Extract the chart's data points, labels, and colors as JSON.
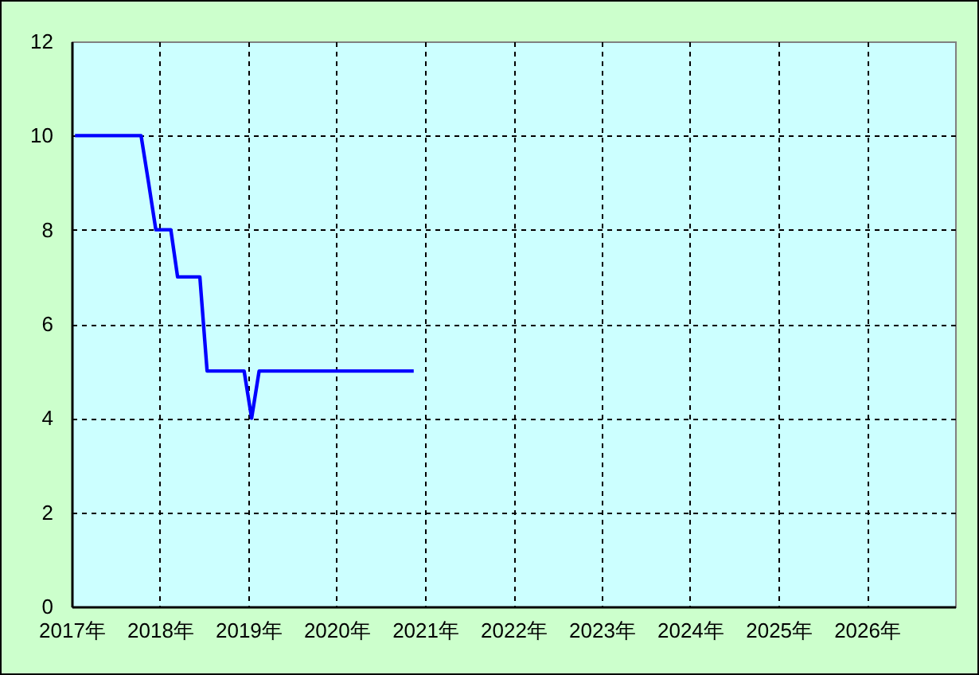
{
  "chart_data": {
    "type": "line",
    "x": [
      "2017-01-15",
      "2017-02-15",
      "2017-03-15",
      "2017-04-15",
      "2017-05-15",
      "2017-06-15",
      "2017-07-15",
      "2017-08-15",
      "2017-09-15",
      "2017-10-15",
      "2017-11-15",
      "2017-12-15",
      "2018-01-15",
      "2018-02-15",
      "2018-03-15",
      "2018-04-15",
      "2018-05-15",
      "2018-06-15",
      "2018-07-15",
      "2018-08-15",
      "2018-09-15",
      "2018-10-15",
      "2018-11-15",
      "2018-12-15",
      "2019-01-15",
      "2019-02-15",
      "2019-03-15",
      "2019-04-15",
      "2019-05-15",
      "2019-06-15",
      "2019-07-15",
      "2019-08-15",
      "2019-09-15",
      "2019-10-15",
      "2019-11-15",
      "2019-12-15",
      "2020-01-15",
      "2020-02-15",
      "2020-03-15",
      "2020-04-15",
      "2020-05-15",
      "2020-06-15",
      "2020-07-15",
      "2020-08-15",
      "2020-09-15",
      "2020-10-15",
      "2020-11-15"
    ],
    "values": [
      10,
      10,
      10,
      10,
      10,
      10,
      10,
      10,
      10,
      10,
      9,
      8,
      8,
      8,
      7,
      7,
      7,
      7,
      5,
      5,
      5,
      5,
      5,
      5,
      4,
      5,
      5,
      5,
      5,
      5,
      5,
      5,
      5,
      5,
      5,
      5,
      5,
      5,
      5,
      5,
      5,
      5,
      5,
      5,
      5,
      5,
      5
    ],
    "color": "#0000ff",
    "xlim": [
      "2017",
      "2027"
    ],
    "xticks": [
      {
        "value": "2017",
        "label": "2017年"
      },
      {
        "value": "2018",
        "label": "2018年"
      },
      {
        "value": "2019",
        "label": "2019年"
      },
      {
        "value": "2020",
        "label": "2020年"
      },
      {
        "value": "2021",
        "label": "2021年"
      },
      {
        "value": "2022",
        "label": "2022年"
      },
      {
        "value": "2023",
        "label": "2023年"
      },
      {
        "value": "2024",
        "label": "2024年"
      },
      {
        "value": "2025",
        "label": "2025年"
      },
      {
        "value": "2026",
        "label": "2026年"
      }
    ],
    "ylim": [
      0,
      12
    ],
    "yticks": [
      0,
      2,
      4,
      6,
      8,
      10,
      12
    ],
    "grid": true
  }
}
